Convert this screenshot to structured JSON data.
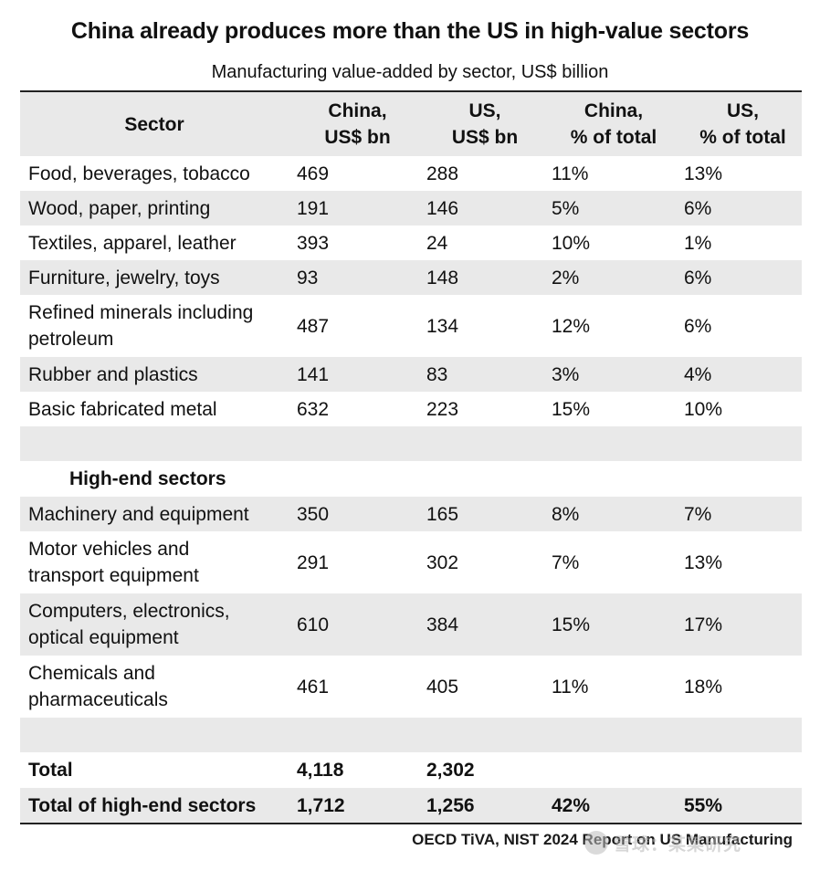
{
  "title": "China already produces more than the US in high-value sectors",
  "subtitle": "Manufacturing value-added by sector, US$ billion",
  "columns": {
    "sector": "Sector",
    "china_bn_1": "China,",
    "china_bn_2": "US$ bn",
    "us_bn_1": "US,",
    "us_bn_2": "US$ bn",
    "china_pct_1": "China,",
    "china_pct_2": "% of total",
    "us_pct_1": "US,",
    "us_pct_2": "% of total"
  },
  "rows": [
    {
      "sector": "Food, beverages, tobacco",
      "china": "469",
      "us": "288",
      "china_pct": "11%",
      "us_pct": "13%"
    },
    {
      "sector": "Wood, paper, printing",
      "china": "191",
      "us": "146",
      "china_pct": "5%",
      "us_pct": "6%"
    },
    {
      "sector": "Textiles, apparel, leather",
      "china": "393",
      "us": "24",
      "china_pct": "10%",
      "us_pct": "1%"
    },
    {
      "sector": "Furniture, jewelry, toys",
      "china": "93",
      "us": "148",
      "china_pct": "2%",
      "us_pct": "6%"
    },
    {
      "sector_1": "Refined minerals including",
      "sector_2": "petroleum",
      "china": "487",
      "us": "134",
      "china_pct": "12%",
      "us_pct": "6%"
    },
    {
      "sector": "Rubber and plastics",
      "china": "141",
      "us": "83",
      "china_pct": "3%",
      "us_pct": "4%"
    },
    {
      "sector": "Basic fabricated metal",
      "china": "632",
      "us": "223",
      "china_pct": "15%",
      "us_pct": "10%"
    }
  ],
  "high_end_heading": "High-end sectors",
  "high_end_rows": [
    {
      "sector": "Machinery and equipment",
      "china": "350",
      "us": "165",
      "china_pct": "8%",
      "us_pct": "7%"
    },
    {
      "sector_1": "Motor vehicles and",
      "sector_2": "transport equipment",
      "china": "291",
      "us": "302",
      "china_pct": "7%",
      "us_pct": "13%"
    },
    {
      "sector_1": "Computers, electronics,",
      "sector_2": "optical equipment",
      "china": "610",
      "us": "384",
      "china_pct": "15%",
      "us_pct": "17%"
    },
    {
      "sector_1": "Chemicals and",
      "sector_2": "pharmaceuticals",
      "china": "461",
      "us": "405",
      "china_pct": "11%",
      "us_pct": "18%"
    }
  ],
  "total": {
    "label": "Total",
    "china": "4,118",
    "us": "2,302"
  },
  "total_high_end": {
    "label": "Total of high-end sectors",
    "china": "1,712",
    "us": "1,256",
    "china_pct": "42%",
    "us_pct": "55%"
  },
  "source": "OECD TiVA, NIST 2024 Report on US Manufacturing",
  "watermark": {
    "text": "雪球：某某研究"
  }
}
